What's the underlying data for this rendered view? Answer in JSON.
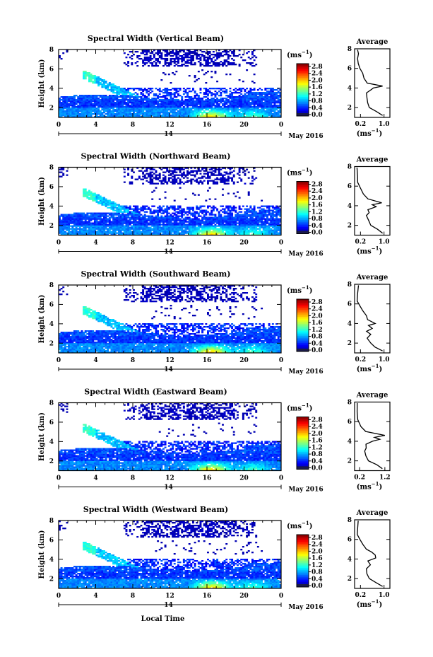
{
  "figure": {
    "xlabel": "Local Time",
    "date_label": "14",
    "month_label": "May 2016",
    "cbar_unit": "(ms",
    "cbar_unit_exp": "−1",
    "cbar_unit_close": ")",
    "avg_title": "Average",
    "ylabel": "Height (km)"
  },
  "chart_data": [
    {
      "type": "heatmap",
      "title": "Spectral Width (Vertical Beam)",
      "ylabel": "Height (km)",
      "xlabel": "Local Time",
      "x_ticks": [
        "0",
        "4",
        "8",
        "12",
        "16",
        "20",
        "0"
      ],
      "xlim": [
        0,
        24
      ],
      "y_ticks": [
        "2",
        "4",
        "6",
        "8"
      ],
      "ylim": [
        1,
        8
      ],
      "colorbar": {
        "label": "(ms−1)",
        "ticks": [
          "0.0",
          "0.4",
          "0.8",
          "1.2",
          "1.6",
          "2.0",
          "2.4",
          "2.8"
        ],
        "range": [
          0,
          3.0
        ],
        "colormap": "jet"
      }
    },
    {
      "type": "line",
      "title": "Average",
      "xlabel": "(ms−1)",
      "x_ticks": [
        "0.2",
        "1.0"
      ],
      "xlim": [
        0,
        1.2
      ],
      "y_ticks": [
        "2",
        "4",
        "6",
        "8"
      ],
      "ylim": [
        1,
        8
      ],
      "series": [
        {
          "x": [
            0.95,
            0.75,
            0.5,
            0.45,
            0.42,
            0.4,
            0.55,
            0.62,
            0.95,
            0.4,
            0.32,
            0.28,
            0.18,
            0.12,
            0.1,
            0.1,
            0.1
          ],
          "y": [
            1.2,
            1.6,
            2.0,
            2.5,
            3.0,
            3.5,
            3.8,
            4.0,
            4.2,
            4.5,
            5.0,
            5.5,
            6.0,
            6.5,
            7.0,
            7.5,
            7.9
          ]
        }
      ]
    },
    {
      "type": "heatmap",
      "title": "Spectral Width (Northward Beam)",
      "ylabel": "Height (km)",
      "xlabel": "Local Time",
      "x_ticks": [
        "0",
        "4",
        "8",
        "12",
        "16",
        "20",
        "0"
      ],
      "xlim": [
        0,
        24
      ],
      "y_ticks": [
        "2",
        "4",
        "6",
        "8"
      ],
      "ylim": [
        1,
        8
      ],
      "colorbar": {
        "label": "(ms−1)",
        "ticks": [
          "0.0",
          "0.4",
          "0.8",
          "1.2",
          "1.6",
          "2.0",
          "2.4",
          "2.8"
        ],
        "range": [
          0,
          3.0
        ],
        "colormap": "jet"
      }
    },
    {
      "type": "line",
      "title": "Average",
      "xlabel": "(ms−1)",
      "x_ticks": [
        "0.2",
        "1.0"
      ],
      "xlim": [
        0,
        1.2
      ],
      "y_ticks": [
        "2",
        "4",
        "6",
        "8"
      ],
      "ylim": [
        1,
        8
      ],
      "series": [
        {
          "x": [
            0.95,
            0.8,
            0.55,
            0.45,
            0.4,
            0.5,
            0.45,
            0.7,
            0.6,
            0.9,
            0.45,
            0.3,
            0.2,
            0.12,
            0.1,
            0.1
          ],
          "y": [
            1.2,
            1.6,
            2.0,
            2.5,
            3.0,
            3.3,
            3.6,
            3.9,
            4.1,
            4.3,
            4.7,
            5.2,
            5.8,
            6.4,
            7.0,
            7.9
          ]
        }
      ]
    },
    {
      "type": "heatmap",
      "title": "Spectral Width (Southward Beam)",
      "ylabel": "Height (km)",
      "xlabel": "Local Time",
      "x_ticks": [
        "0",
        "4",
        "8",
        "12",
        "16",
        "20",
        "0"
      ],
      "xlim": [
        0,
        24
      ],
      "y_ticks": [
        "2",
        "4",
        "6",
        "8"
      ],
      "ylim": [
        1,
        8
      ],
      "colorbar": {
        "label": "(ms−1)",
        "ticks": [
          "0.0",
          "0.4",
          "0.8",
          "1.2",
          "1.6",
          "2.0",
          "2.4",
          "2.8"
        ],
        "range": [
          0,
          3.0
        ],
        "colormap": "jet"
      }
    },
    {
      "type": "line",
      "title": "Average",
      "xlabel": "(ms−1)",
      "x_ticks": [
        "0.2",
        "1.0"
      ],
      "xlim": [
        0,
        1.2
      ],
      "y_ticks": [
        "2",
        "4",
        "6",
        "8"
      ],
      "ylim": [
        1,
        8
      ],
      "series": [
        {
          "x": [
            0.95,
            0.7,
            0.55,
            0.45,
            0.55,
            0.4,
            0.6,
            0.5,
            0.7,
            0.45,
            0.4,
            0.3,
            0.18,
            0.12,
            0.1,
            0.1
          ],
          "y": [
            1.2,
            1.6,
            2.0,
            2.5,
            2.9,
            3.2,
            3.5,
            3.8,
            4.0,
            4.4,
            4.8,
            5.3,
            5.8,
            6.3,
            7.0,
            7.9
          ]
        }
      ]
    },
    {
      "type": "heatmap",
      "title": "Spectral Width (Eastward Beam)",
      "ylabel": "Height (km)",
      "xlabel": "Local Time",
      "x_ticks": [
        "0",
        "4",
        "8",
        "12",
        "16",
        "20",
        "0"
      ],
      "xlim": [
        0,
        24
      ],
      "y_ticks": [
        "2",
        "4",
        "6",
        "8"
      ],
      "ylim": [
        1,
        8
      ],
      "colorbar": {
        "label": "(ms−1)",
        "ticks": [
          "0.0",
          "0.4",
          "0.8",
          "1.2",
          "1.6",
          "2.0",
          "2.4",
          "2.8"
        ],
        "range": [
          0,
          3.0
        ],
        "colormap": "jet"
      }
    },
    {
      "type": "line",
      "title": "Average",
      "xlabel": "(ms−1)",
      "x_ticks": [
        "0.2",
        "1.2"
      ],
      "xlim": [
        0,
        1.4
      ],
      "y_ticks": [
        "2",
        "4",
        "6",
        "8"
      ],
      "ylim": [
        1,
        8
      ],
      "series": [
        {
          "x": [
            1.1,
            0.85,
            0.55,
            0.45,
            0.4,
            0.5,
            0.45,
            0.7,
            1.0,
            0.75,
            1.2,
            0.4,
            0.25,
            0.15,
            0.1,
            0.1
          ],
          "y": [
            1.2,
            1.6,
            2.0,
            2.5,
            3.0,
            3.3,
            3.7,
            4.0,
            4.2,
            4.4,
            4.6,
            5.0,
            5.5,
            6.2,
            7.0,
            7.9
          ]
        }
      ]
    },
    {
      "type": "heatmap",
      "title": "Spectral Width (Westward Beam)",
      "ylabel": "Height (km)",
      "xlabel": "Local Time",
      "x_ticks": [
        "0",
        "4",
        "8",
        "12",
        "16",
        "20",
        "0"
      ],
      "xlim": [
        0,
        24
      ],
      "y_ticks": [
        "2",
        "4",
        "6",
        "8"
      ],
      "ylim": [
        1,
        8
      ],
      "colorbar": {
        "label": "(ms−1)",
        "ticks": [
          "0.0",
          "0.4",
          "0.8",
          "1.2",
          "1.6",
          "2.0",
          "2.4",
          "2.8"
        ],
        "range": [
          0,
          3.0
        ],
        "colormap": "jet"
      }
    },
    {
      "type": "line",
      "title": "Average",
      "xlabel": "(ms−1)",
      "x_ticks": [
        "0.2",
        "1.0"
      ],
      "xlim": [
        0,
        1.2
      ],
      "y_ticks": [
        "2",
        "4",
        "6",
        "8"
      ],
      "ylim": [
        1,
        8
      ],
      "series": [
        {
          "x": [
            0.95,
            0.7,
            0.5,
            0.45,
            0.4,
            0.55,
            0.45,
            0.75,
            0.7,
            0.55,
            0.4,
            0.28,
            0.18,
            0.12,
            0.1,
            0.1
          ],
          "y": [
            1.2,
            1.6,
            2.0,
            2.5,
            3.0,
            3.4,
            3.8,
            4.1,
            4.4,
            4.7,
            5.0,
            5.5,
            6.0,
            6.5,
            7.0,
            7.9
          ]
        }
      ]
    }
  ]
}
